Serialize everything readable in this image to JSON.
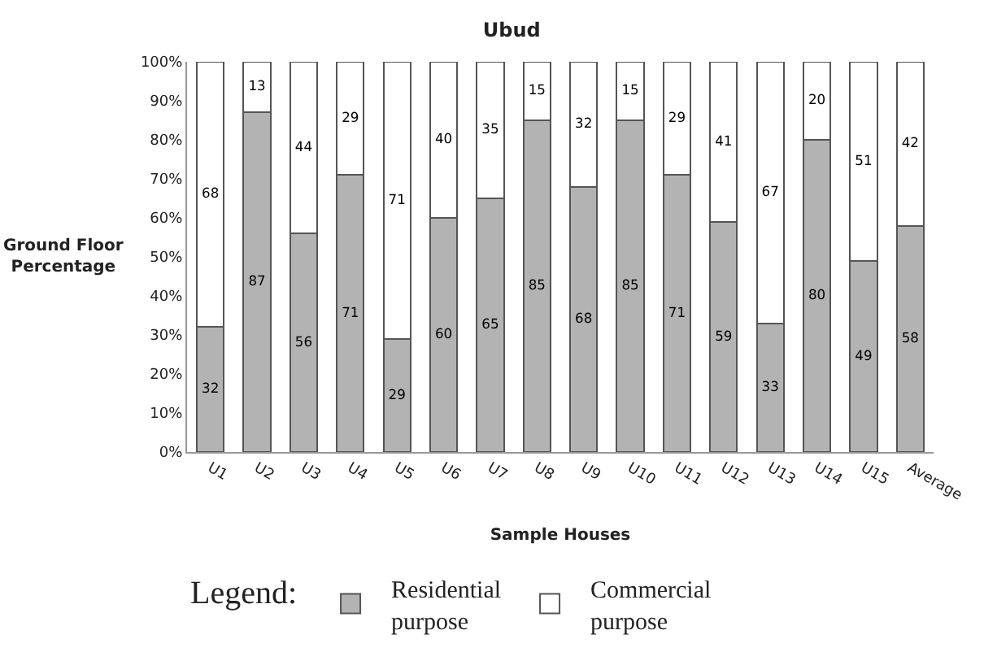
{
  "chart_data": {
    "type": "bar",
    "title": "Ubud",
    "xlabel": "Sample Houses",
    "ylabel": "Ground Floor\nPercentage",
    "legend_title": "Legend:",
    "categories": [
      "U1",
      "U2",
      "U3",
      "U4",
      "U5",
      "U6",
      "U7",
      "U8",
      "U9",
      "U10",
      "U11",
      "U12",
      "U13",
      "U14",
      "U15",
      "Average"
    ],
    "stacked": true,
    "data_labels": true,
    "legend": "bottom",
    "ylim": [
      0,
      100
    ],
    "yticks": [
      {
        "value": 0,
        "label": "0%"
      },
      {
        "value": 10,
        "label": "10%"
      },
      {
        "value": 20,
        "label": "20%"
      },
      {
        "value": 30,
        "label": "30%"
      },
      {
        "value": 40,
        "label": "40%"
      },
      {
        "value": 50,
        "label": "50%"
      },
      {
        "value": 60,
        "label": "60%"
      },
      {
        "value": 70,
        "label": "70%"
      },
      {
        "value": 80,
        "label": "80%"
      },
      {
        "value": 90,
        "label": "90%"
      },
      {
        "value": 100,
        "label": "100%"
      }
    ],
    "series": [
      {
        "name": "Residential purpose",
        "color": "#b3b3b3",
        "values": [
          32,
          87,
          56,
          71,
          29,
          60,
          65,
          85,
          68,
          85,
          71,
          59,
          33,
          80,
          49,
          58
        ]
      },
      {
        "name": "Commercial purpose",
        "color": "#ffffff",
        "values": [
          68,
          13,
          44,
          29,
          71,
          40,
          35,
          15,
          32,
          15,
          29,
          41,
          67,
          20,
          51,
          42
        ]
      }
    ]
  }
}
